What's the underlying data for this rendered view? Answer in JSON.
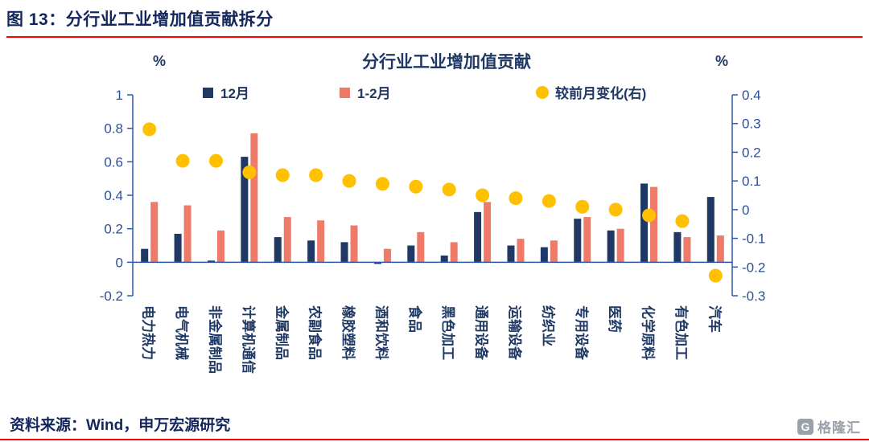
{
  "page": {
    "figure_title": "图 13：分行业工业增加值贡献拆分",
    "source_text": "资料来源：Wind，申万宏源研究",
    "logo": {
      "glyph": "G",
      "text": "格隆汇"
    }
  },
  "chart_data": {
    "type": "bar",
    "title": "分行业工业增加值贡献",
    "legend_position": "top",
    "grid": false,
    "left_axis": {
      "label": "%",
      "min": -0.2,
      "max": 1,
      "ticks": [
        "1",
        "0.8",
        "0.6",
        "0.4",
        "0.2",
        "0",
        "-0.2"
      ]
    },
    "right_axis": {
      "label": "%",
      "min": -0.3,
      "max": 0.4,
      "ticks": [
        "0.4",
        "0.3",
        "0.2",
        "0.1",
        "0",
        "-0.1",
        "-0.2",
        "-0.3"
      ]
    },
    "categories": [
      "电力热力",
      "电气机械",
      "非金属制品",
      "计算机通信",
      "金属制品",
      "农副食品",
      "橡胶塑料",
      "酒和饮料",
      "食品",
      "黑色加工",
      "通用设备",
      "运输设备",
      "纺织业",
      "专用设备",
      "医药",
      "化学原料",
      "有色加工",
      "汽车"
    ],
    "series": [
      {
        "name": "12月",
        "type": "bar",
        "axis": "left",
        "color": "#1f3864",
        "values": [
          0.08,
          0.17,
          0.01,
          0.63,
          0.15,
          0.13,
          0.12,
          -0.01,
          0.1,
          0.04,
          0.3,
          0.1,
          0.09,
          0.26,
          0.19,
          0.47,
          0.18,
          0.39
        ]
      },
      {
        "name": "1-2月",
        "type": "bar",
        "axis": "left",
        "color": "#ee7a6a",
        "values": [
          0.36,
          0.34,
          0.19,
          0.77,
          0.27,
          0.25,
          0.22,
          0.08,
          0.18,
          0.12,
          0.36,
          0.14,
          0.13,
          0.27,
          0.2,
          0.45,
          0.15,
          0.16
        ]
      },
      {
        "name": "较前月变化(右)",
        "type": "dot",
        "axis": "right",
        "color": "#ffc000",
        "values": [
          0.28,
          0.17,
          0.17,
          0.13,
          0.12,
          0.12,
          0.1,
          0.09,
          0.08,
          0.07,
          0.05,
          0.04,
          0.03,
          0.01,
          0.0,
          -0.02,
          -0.04,
          -0.23
        ]
      }
    ],
    "colors": {
      "axis_line": "#2e59a8",
      "tick_text": "#2a4fa0",
      "label_text": "#1f3864",
      "accent_red": "#fe0000"
    }
  }
}
